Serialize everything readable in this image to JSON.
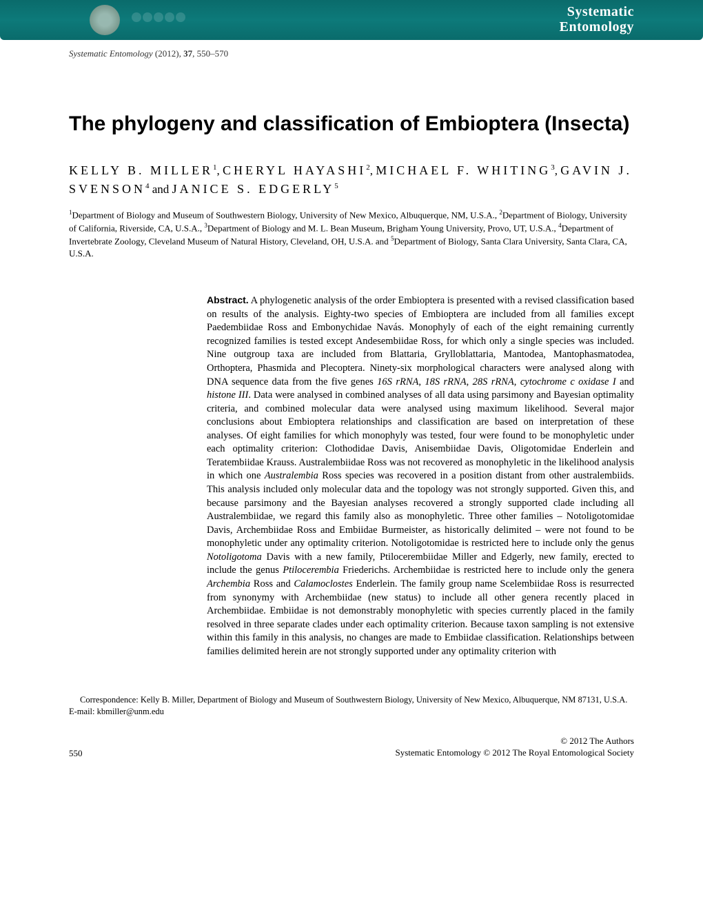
{
  "banner": {
    "journal_line1": "Systematic",
    "journal_line2": "Entomology",
    "banner_bg_color": "#0d7a7a",
    "text_color": "#ffffff"
  },
  "citation": {
    "journal": "Systematic Entomology",
    "year": "(2012),",
    "volume": "37",
    "pages": ", 550–570"
  },
  "title": "The phylogeny and classification of Embioptera (Insecta)",
  "authors": {
    "a1_name": "KELLY B. MILLER",
    "a1_sup": "1",
    "sep1": ", ",
    "a2_name": "CHERYL HAYASHI",
    "a2_sup": "2",
    "sep2": ", ",
    "a3_name": "MICHAEL F. WHITING",
    "a3_sup": "3",
    "sep3": ", ",
    "a4_name": "GAVIN J. SVENSON",
    "a4_sup": "4",
    "and": " and ",
    "a5_name": "JANICE S. EDGERLY",
    "a5_sup": "5"
  },
  "affiliations": {
    "sup1": "1",
    "aff1": "Department of Biology and Museum of Southwestern Biology, University of New Mexico, Albuquerque, NM, U.S.A., ",
    "sup2": "2",
    "aff2": "Department of Biology, University of California, Riverside, CA, U.S.A., ",
    "sup3": "3",
    "aff3": "Department of Biology and M. L. Bean Museum, Brigham Young University, Provo, UT, U.S.A., ",
    "sup4": "4",
    "aff4": "Department of Invertebrate Zoology, Cleveland Museum of Natural History, Cleveland, OH, U.S.A. and ",
    "sup5": "5",
    "aff5": "Department of Biology, Santa Clara University, Santa Clara, CA, U.S.A."
  },
  "abstract": {
    "label": "Abstract.",
    "part1": " A phylogenetic analysis of the order Embioptera is presented with a revised classification based on results of the analysis. Eighty-two species of Embioptera are included from all families except Paedembiidae Ross and Embonychidae Navás. Monophyly of each of the eight remaining currently recognized families is tested except Andesembiidae Ross, for which only a single species was included. Nine outgroup taxa are included from Blattaria, Grylloblattaria, Mantodea, Mantophasmatodea, Orthoptera, Phasmida and Plecoptera. Ninety-six morphological characters were analysed along with DNA sequence data from the five genes ",
    "gene1": "16S rRNA",
    "comma1": ", ",
    "gene2": "18S rRNA",
    "comma2": ", ",
    "gene3": "28S rRNA",
    "comma3": ", ",
    "gene4": "cytochrome c oxidase I",
    "and_gene": " and ",
    "gene5": "histone III",
    "part2": ". Data were analysed in combined analyses of all data using parsimony and Bayesian optimality criteria, and combined molecular data were analysed using maximum likelihood. Several major conclusions about Embioptera relationships and classification are based on interpretation of these analyses. Of eight families for which monophyly was tested, four were found to be monophyletic under each optimality criterion: Clothodidae Davis, Anisembiidae Davis, Oligotomidae Enderlein and Teratembiidae Krauss. Australembiidae Ross was not recovered as monophyletic in the likelihood analysis in which one ",
    "genus1": "Australembia",
    "part3": " Ross species was recovered in a position distant from other australembiids. This analysis included only molecular data and the topology was not strongly supported. Given this, and because parsimony and the Bayesian analyses recovered a strongly supported clade including all Australembiidae, we regard this family also as monophyletic. Three other families – Notoligotomidae Davis, Archembiidae Ross and Embiidae Burmeister, as historically delimited – were not found to be monophyletic under any optimality criterion. Notoligotomidae is restricted here to include only the genus ",
    "genus2": "Notoligotoma",
    "part4": " Davis with a new family, Ptilocerembiidae Miller and Edgerly, new family, erected to include the genus ",
    "genus3": "Ptilocerembia",
    "part5": " Friederichs. Archembiidae is restricted here to include only the genera ",
    "genus4": "Archembia",
    "part6": " Ross and ",
    "genus5": "Calamoclostes",
    "part7": " Enderlein. The family group name Scelembiidae Ross is resurrected from synonymy with Archembiidae (new status) to include all other genera recently placed in Archembiidae. Embiidae is not demonstrably monophyletic with species currently placed in the family resolved in three separate clades under each optimality criterion. Because taxon sampling is not extensive within this family in this analysis, no changes are made to Embiidae classification. Relationships between families delimited herein are not strongly supported under any optimality criterion with"
  },
  "correspondence": "Correspondence: Kelly B. Miller, Department of Biology and Museum of Southwestern Biology, University of New Mexico, Albuquerque, NM 87131, U.S.A. E-mail: kbmiller@unm.edu",
  "footer": {
    "page_number": "550",
    "copyright_line1": "© 2012 The Authors",
    "copyright_line2": "Systematic Entomology © 2012 The Royal Entomological Society"
  },
  "colors": {
    "page_bg": "#ffffff",
    "text": "#000000"
  }
}
